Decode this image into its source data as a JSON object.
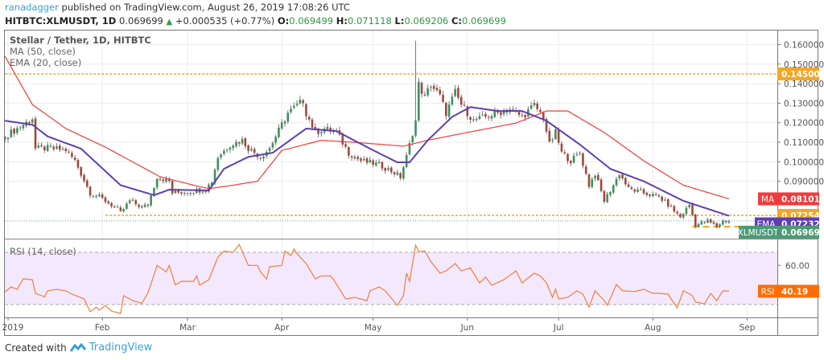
{
  "header": {
    "author": "ranadagger",
    "published_text": "published on TradingView.com, August 26, 2019 17:08:26 UTC",
    "symbol": "HITBTC:XLMUSDT, 1D",
    "last": "0.069699",
    "change": "+0.000535 (+0.77%)",
    "o_label": "O:",
    "o": "0.069499",
    "h_label": "H:",
    "h": "0.071118",
    "l_label": "L:",
    "l": "0.069206",
    "c_label": "C:",
    "c": "0.069699"
  },
  "footer": {
    "created_with": "Created with",
    "brand": "TradingView"
  },
  "colors": {
    "up": "#3f8f5f",
    "down": "#a3463a",
    "ma": "#f23a3a",
    "ema": "#5e3fb0",
    "rsi": "#f08040",
    "level": "#f5a623",
    "last": "#4c9a74",
    "rsi_label": "#ff6d00"
  },
  "chart_data": {
    "type": "candlestick",
    "title": "Stellar / Tether, 1D, HITBTC",
    "indicators": [
      "MA (50, close)",
      "EMA (20, close)"
    ],
    "rsi_title": "RSI (14, close)",
    "x_unit": "days since 2019-01-01",
    "x_range": [
      -1,
      237
    ],
    "ylim": [
      0.066,
      0.166
    ],
    "y_ticks": [
      "0.160000",
      "0.150000",
      "0.140000",
      "0.130000",
      "0.120000",
      "0.110000",
      "0.100000",
      "0.090000"
    ],
    "y_tick_values": [
      0.16,
      0.15,
      0.14,
      0.13,
      0.12,
      0.11,
      0.1,
      0.09
    ],
    "x_ticks": [
      {
        "label": "2019",
        "day": 0
      },
      {
        "label": "Feb",
        "day": 31
      },
      {
        "label": "Mar",
        "day": 59
      },
      {
        "label": "Apr",
        "day": 90
      },
      {
        "label": "May",
        "day": 120
      },
      {
        "label": "Jun",
        "day": 151
      },
      {
        "label": "Jul",
        "day": 181
      },
      {
        "label": "Aug",
        "day": 212
      },
      {
        "label": "Sep",
        "day": 243
      }
    ],
    "close_anchors": [
      [
        -1,
        0.113
      ],
      [
        5,
        0.119
      ],
      [
        8,
        0.1223
      ],
      [
        9,
        0.1067
      ],
      [
        13,
        0.107
      ],
      [
        19,
        0.106
      ],
      [
        22,
        0.1005
      ],
      [
        27,
        0.084
      ],
      [
        30,
        0.082
      ],
      [
        36,
        0.0758
      ],
      [
        37,
        0.0738
      ],
      [
        40,
        0.08
      ],
      [
        44,
        0.0767
      ],
      [
        46,
        0.078
      ],
      [
        49,
        0.0923
      ],
      [
        53,
        0.09
      ],
      [
        54,
        0.084
      ],
      [
        61,
        0.085
      ],
      [
        65,
        0.086
      ],
      [
        67,
        0.09
      ],
      [
        69,
        0.1025
      ],
      [
        73,
        0.1088
      ],
      [
        77,
        0.111
      ],
      [
        79,
        0.107
      ],
      [
        83,
        0.1025
      ],
      [
        86,
        0.107
      ],
      [
        90,
        0.119
      ],
      [
        92,
        0.125
      ],
      [
        97,
        0.1314
      ],
      [
        98,
        0.125
      ],
      [
        101,
        0.115
      ],
      [
        104,
        0.117
      ],
      [
        108,
        0.115
      ],
      [
        112,
        0.1046
      ],
      [
        116,
        0.1005
      ],
      [
        122,
        0.0985
      ],
      [
        127,
        0.0944
      ],
      [
        129,
        0.0923
      ],
      [
        131,
        0.1025
      ],
      [
        134,
        0.121
      ],
      [
        135,
        0.1396
      ],
      [
        137,
        0.133
      ],
      [
        139,
        0.1396
      ],
      [
        142,
        0.1335
      ],
      [
        144,
        0.125
      ],
      [
        147,
        0.1355
      ],
      [
        149,
        0.1293
      ],
      [
        153,
        0.121
      ],
      [
        157,
        0.123
      ],
      [
        161,
        0.125
      ],
      [
        165,
        0.127
      ],
      [
        169,
        0.123
      ],
      [
        173,
        0.129
      ],
      [
        176,
        0.123
      ],
      [
        178,
        0.1088
      ],
      [
        180,
        0.115
      ],
      [
        182,
        0.1046
      ],
      [
        185,
        0.1005
      ],
      [
        188,
        0.1046
      ],
      [
        191,
        0.088
      ],
      [
        193,
        0.094
      ],
      [
        196,
        0.08
      ],
      [
        199,
        0.088
      ],
      [
        201,
        0.094
      ],
      [
        204,
        0.0862
      ],
      [
        209,
        0.084
      ],
      [
        214,
        0.082
      ],
      [
        217,
        0.078
      ],
      [
        221,
        0.0717
      ],
      [
        224,
        0.078
      ],
      [
        226,
        0.0676
      ],
      [
        230,
        0.0697
      ],
      [
        233,
        0.0668
      ],
      [
        235,
        0.0697
      ],
      [
        237,
        0.069699
      ]
    ],
    "spike_high": {
      "day": 134,
      "value": 0.162
    },
    "ma50": [
      [
        -1,
        0.154
      ],
      [
        8,
        0.1293
      ],
      [
        19,
        0.117
      ],
      [
        32,
        0.1075
      ],
      [
        50,
        0.0923
      ],
      [
        61,
        0.088
      ],
      [
        66,
        0.0862
      ],
      [
        74,
        0.088
      ],
      [
        82,
        0.09
      ],
      [
        90,
        0.1058
      ],
      [
        103,
        0.111
      ],
      [
        116,
        0.1097
      ],
      [
        130,
        0.108
      ],
      [
        138,
        0.111
      ],
      [
        151,
        0.115
      ],
      [
        167,
        0.1198
      ],
      [
        177,
        0.126
      ],
      [
        184,
        0.126
      ],
      [
        196,
        0.115
      ],
      [
        209,
        0.1005
      ],
      [
        222,
        0.088
      ],
      [
        237,
        0.081011
      ]
    ],
    "ema20": [
      [
        -1,
        0.121
      ],
      [
        8,
        0.119
      ],
      [
        13,
        0.113
      ],
      [
        24,
        0.1067
      ],
      [
        37,
        0.088
      ],
      [
        48,
        0.0829
      ],
      [
        53,
        0.0857
      ],
      [
        66,
        0.0853
      ],
      [
        71,
        0.0964
      ],
      [
        79,
        0.1025
      ],
      [
        87,
        0.1046
      ],
      [
        98,
        0.117
      ],
      [
        108,
        0.1157
      ],
      [
        119,
        0.1067
      ],
      [
        128,
        0.0997
      ],
      [
        132,
        0.0997
      ],
      [
        138,
        0.111
      ],
      [
        146,
        0.123
      ],
      [
        152,
        0.128
      ],
      [
        161,
        0.126
      ],
      [
        169,
        0.126
      ],
      [
        177,
        0.121
      ],
      [
        188,
        0.1088
      ],
      [
        198,
        0.0964
      ],
      [
        209,
        0.09
      ],
      [
        222,
        0.08
      ],
      [
        237,
        0.072328
      ]
    ],
    "levels": [
      {
        "name": "resistance",
        "value": 0.145,
        "label": "0.145000",
        "from_day": -1
      },
      {
        "name": "support",
        "value": 0.072545,
        "label": "0.072545",
        "from_day": 32
      },
      {
        "name": "recent-low",
        "value": 0.0668,
        "from_day": 225
      }
    ],
    "price_labels": {
      "ma_tag": "MA",
      "ma_value": "0.081011",
      "ema_tag": "EMA",
      "ema_value": "0.072328",
      "last_tag": "XLMUSDT",
      "last_value": "0.069699",
      "support_value": "0.072545",
      "last_price": 0.069699
    },
    "rsi": {
      "levels": [
        30,
        70
      ],
      "tick": "60.00",
      "tick_value": 60,
      "tag": "RSI",
      "value_label": "40.19",
      "ylim": [
        18,
        79
      ],
      "points": [
        [
          -1,
          39.8
        ],
        [
          1,
          43.5
        ],
        [
          3,
          41.7
        ],
        [
          5,
          49.7
        ],
        [
          8,
          49
        ],
        [
          9,
          38.6
        ],
        [
          12,
          36
        ],
        [
          13,
          40.5
        ],
        [
          16,
          41.7
        ],
        [
          19,
          40.5
        ],
        [
          21,
          38
        ],
        [
          25,
          34.3
        ],
        [
          27,
          24.5
        ],
        [
          29,
          28
        ],
        [
          30,
          25.6
        ],
        [
          32,
          29.4
        ],
        [
          34,
          25
        ],
        [
          37,
          23.2
        ],
        [
          38,
          36.8
        ],
        [
          41,
          33
        ],
        [
          44,
          31
        ],
        [
          46,
          39
        ],
        [
          49,
          60
        ],
        [
          52,
          55
        ],
        [
          53,
          60
        ],
        [
          55,
          45
        ],
        [
          57,
          47.8
        ],
        [
          61,
          47.8
        ],
        [
          62,
          52
        ],
        [
          63,
          44.8
        ],
        [
          66,
          49
        ],
        [
          69,
          66.3
        ],
        [
          71,
          71
        ],
        [
          74,
          70
        ],
        [
          76,
          76
        ],
        [
          79,
          60
        ],
        [
          82,
          60
        ],
        [
          83,
          55
        ],
        [
          85,
          49.7
        ],
        [
          86,
          59
        ],
        [
          90,
          60
        ],
        [
          91,
          71
        ],
        [
          93,
          67.5
        ],
        [
          94,
          72.5
        ],
        [
          95,
          69
        ],
        [
          98,
          61.4
        ],
        [
          101,
          49.7
        ],
        [
          103,
          52
        ],
        [
          106,
          52
        ],
        [
          107,
          49
        ],
        [
          111,
          34.3
        ],
        [
          114,
          35.5
        ],
        [
          118,
          33
        ],
        [
          119,
          40.5
        ],
        [
          122,
          43.5
        ],
        [
          124,
          40.5
        ],
        [
          128,
          29.4
        ],
        [
          130,
          36.8
        ],
        [
          131,
          54
        ],
        [
          132,
          47.8
        ],
        [
          134,
          75.5
        ],
        [
          135,
          70.6
        ],
        [
          137,
          71
        ],
        [
          139,
          63
        ],
        [
          142,
          54
        ],
        [
          144,
          55.8
        ],
        [
          147,
          61.4
        ],
        [
          149,
          55.8
        ],
        [
          152,
          58
        ],
        [
          155,
          46.6
        ],
        [
          157,
          51
        ],
        [
          159,
          44.8
        ],
        [
          163,
          49
        ],
        [
          167,
          55.8
        ],
        [
          169,
          46.6
        ],
        [
          173,
          54
        ],
        [
          175,
          52
        ],
        [
          177,
          46.6
        ],
        [
          179,
          35.5
        ],
        [
          180,
          41.7
        ],
        [
          181,
          34.3
        ],
        [
          184,
          35.5
        ],
        [
          187,
          40.5
        ],
        [
          189,
          38
        ],
        [
          191,
          28
        ],
        [
          193,
          40.5
        ],
        [
          196,
          33
        ],
        [
          197,
          29.4
        ],
        [
          200,
          45.4
        ],
        [
          202,
          40.5
        ],
        [
          206,
          40
        ],
        [
          209,
          41.7
        ],
        [
          212,
          38.6
        ],
        [
          214,
          38.6
        ],
        [
          217,
          38
        ],
        [
          218,
          34.3
        ],
        [
          220,
          27.5
        ],
        [
          222,
          40.5
        ],
        [
          225,
          36.8
        ],
        [
          226,
          32
        ],
        [
          229,
          30.6
        ],
        [
          231,
          38.6
        ],
        [
          233,
          33
        ],
        [
          235,
          40.5
        ],
        [
          237,
          40.19
        ]
      ]
    }
  }
}
